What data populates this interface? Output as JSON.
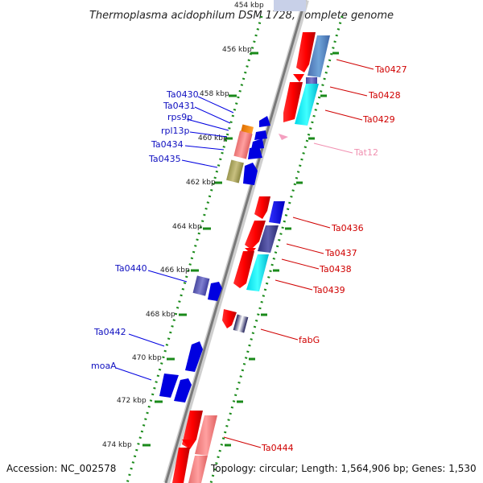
{
  "header": {
    "title": "Thermoplasma acidophilum DSM 1728, complete genome",
    "top_tick": "454 kbp"
  },
  "footer": {
    "accession": "Accession: NC_002578",
    "summary": "Topology: circular; Length: 1,564,906 bp; Genes: 1,530"
  },
  "colors": {
    "backbone": "#8c8c8c",
    "dots": "#1a8a1a",
    "left_label": "#1010c0",
    "right_label": "#d00000",
    "trna_label": "#f090b0"
  },
  "ticks": [
    "456 kbp",
    "458 kbp",
    "460 kbp",
    "462 kbp",
    "464 kbp",
    "466 kbp",
    "468 kbp",
    "470 kbp",
    "472 kbp",
    "474 kbp"
  ],
  "left_genes": [
    "Ta0430",
    "Ta0431",
    "rps9p",
    "rpl13p",
    "Ta0434",
    "Ta0435",
    "Ta0440",
    "Ta0442",
    "moaA"
  ],
  "right_genes": [
    "Ta0427",
    "Ta0428",
    "Ta0429",
    "Tat12",
    "Ta0436",
    "Ta0437",
    "Ta0438",
    "Ta0439",
    "fabG",
    "Ta0444"
  ]
}
